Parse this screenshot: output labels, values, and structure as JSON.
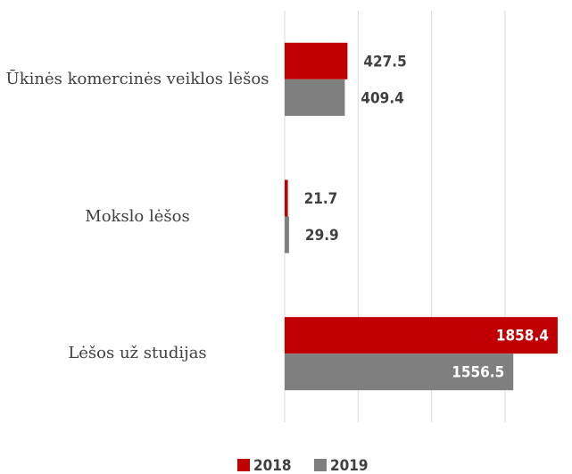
{
  "chart_data": {
    "type": "barh",
    "categories": [
      "Ūkinės komercinės veiklos lėšos",
      "Mokslo lėšos",
      "Lėšos už studijas"
    ],
    "series": [
      {
        "name": "2018",
        "color": "#c00000",
        "values": [
          427.5,
          21.7,
          1858.4
        ]
      },
      {
        "name": "2019",
        "color": "#7f7f7f",
        "values": [
          409.4,
          29.9,
          1556.5
        ]
      }
    ],
    "xlim": [
      0,
      1950
    ],
    "xticks": [
      0,
      500,
      1000,
      1500
    ],
    "grid": true,
    "legend": "bottom"
  }
}
